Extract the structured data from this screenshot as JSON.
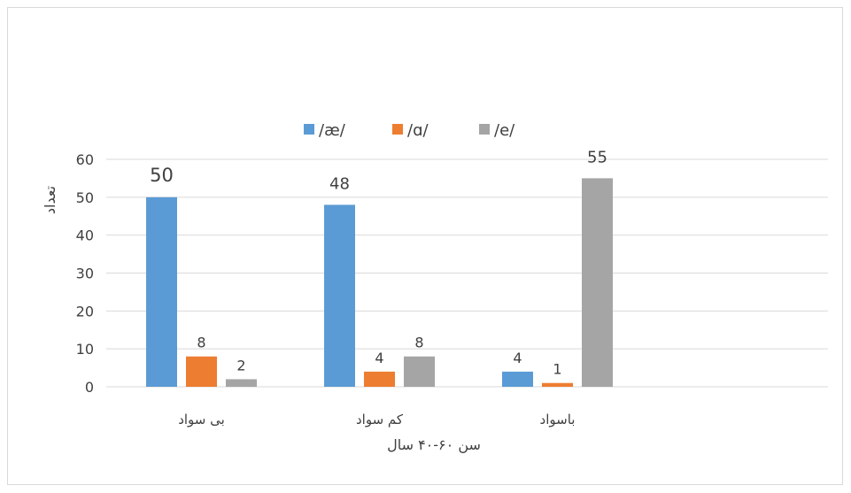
{
  "chart_data": {
    "type": "bar",
    "categories": [
      "بی سواد",
      "کم سواد",
      "باسواد"
    ],
    "series": [
      {
        "name": "/æ/",
        "color": "#5b9bd5",
        "values": [
          50,
          48,
          4
        ]
      },
      {
        "name": "/ɑ/",
        "color": "#ed7d31",
        "values": [
          8,
          4,
          1
        ]
      },
      {
        "name": "/e/",
        "color": "#a5a5a5",
        "values": [
          2,
          8,
          55
        ]
      }
    ],
    "ylim": [
      0,
      60
    ],
    "yticks": [
      0,
      10,
      20,
      30,
      40,
      50,
      60
    ],
    "xlabel": "سن ۶۰-۴۰ سال",
    "ylabel": "تعداد",
    "grid": true,
    "legend": "top"
  }
}
